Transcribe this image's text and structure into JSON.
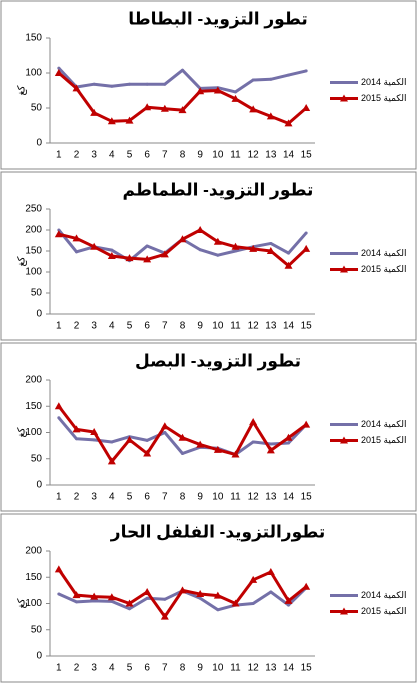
{
  "chart_data": [
    {
      "type": "line",
      "title": "تطور التزويد- البطاطا",
      "y_label": "كغ",
      "categories": [
        1,
        2,
        3,
        4,
        5,
        6,
        7,
        8,
        9,
        10,
        11,
        12,
        13,
        14,
        15
      ],
      "series": [
        {
          "name": "2014 الكمية",
          "color": "#7470a8",
          "marker": "none",
          "values": [
            107,
            80,
            84,
            81,
            84,
            84,
            84,
            104,
            78,
            79,
            73,
            90,
            91,
            97,
            103
          ]
        },
        {
          "name": "2015 الكمية",
          "color": "#c00000",
          "marker": "triangle",
          "values": [
            100,
            78,
            43,
            31,
            32,
            51,
            49,
            47,
            74,
            75,
            63,
            48,
            38,
            28,
            50
          ]
        }
      ],
      "ylim": [
        0,
        150
      ],
      "yticks": [
        0,
        50,
        100,
        150
      ],
      "grid": false
    },
    {
      "type": "line",
      "title": "تطور التزويد- الطماطم",
      "y_label": "كغ",
      "categories": [
        1,
        2,
        3,
        4,
        5,
        6,
        7,
        8,
        9,
        10,
        11,
        12,
        13,
        14,
        15
      ],
      "series": [
        {
          "name": "2014 الكمية",
          "color": "#7470a8",
          "marker": "none",
          "values": [
            200,
            148,
            160,
            152,
            127,
            162,
            145,
            178,
            153,
            140,
            150,
            160,
            168,
            145,
            193
          ]
        },
        {
          "name": "2015 الكمية",
          "color": "#c00000",
          "marker": "triangle",
          "values": [
            190,
            180,
            160,
            138,
            133,
            130,
            142,
            178,
            200,
            172,
            160,
            155,
            150,
            115,
            155
          ]
        }
      ],
      "ylim": [
        0,
        250
      ],
      "yticks": [
        0,
        50,
        100,
        150,
        200,
        250
      ],
      "grid": false
    },
    {
      "type": "line",
      "title": "تطور التزويد- البصل",
      "y_label": "كغ",
      "categories": [
        1,
        2,
        3,
        4,
        5,
        6,
        7,
        8,
        9,
        10,
        11,
        12,
        13,
        14,
        15
      ],
      "series": [
        {
          "name": "2014 الكمية",
          "color": "#7470a8",
          "marker": "none",
          "values": [
            128,
            88,
            86,
            82,
            92,
            85,
            100,
            60,
            72,
            70,
            58,
            82,
            78,
            80,
            115
          ]
        },
        {
          "name": "2015 الكمية",
          "color": "#c00000",
          "marker": "triangle",
          "values": [
            150,
            106,
            101,
            45,
            86,
            60,
            112,
            90,
            77,
            67,
            58,
            120,
            66,
            90,
            115
          ]
        }
      ],
      "ylim": [
        0,
        200
      ],
      "yticks": [
        0,
        50,
        100,
        150,
        200
      ],
      "grid": false
    },
    {
      "type": "line",
      "title": "تطورالتزويد- الفلفل الحار",
      "y_label": "كغ",
      "categories": [
        1,
        2,
        3,
        4,
        5,
        6,
        7,
        8,
        9,
        10,
        11,
        12,
        13,
        14,
        15
      ],
      "series": [
        {
          "name": "2014 الكمية",
          "color": "#7470a8",
          "marker": "none",
          "values": [
            118,
            103,
            105,
            104,
            90,
            110,
            108,
            124,
            110,
            88,
            97,
            100,
            122,
            97,
            130
          ]
        },
        {
          "name": "2015 الكمية",
          "color": "#c00000",
          "marker": "triangle",
          "values": [
            165,
            116,
            113,
            112,
            100,
            122,
            75,
            125,
            118,
            115,
            100,
            145,
            160,
            105,
            132
          ]
        }
      ],
      "ylim": [
        0,
        200
      ],
      "yticks": [
        0,
        50,
        100,
        150,
        200
      ],
      "grid": false
    }
  ]
}
